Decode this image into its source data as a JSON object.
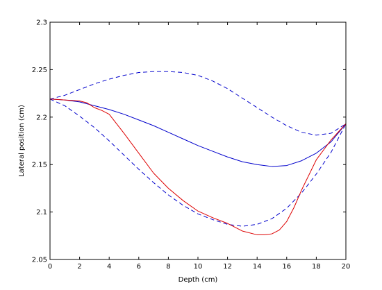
{
  "chart_data": {
    "type": "line",
    "title": "",
    "xlabel": "Depth (cm)",
    "ylabel": "Lateral position (cm)",
    "xlim": [
      0,
      20
    ],
    "ylim": [
      2.05,
      2.3
    ],
    "xticks": [
      0,
      2,
      4,
      6,
      8,
      10,
      12,
      14,
      16,
      18,
      20
    ],
    "yticks": [
      2.05,
      2.1,
      2.15,
      2.2,
      2.25,
      2.3
    ],
    "xtick_labels": [
      "0",
      "2",
      "4",
      "6",
      "8",
      "10",
      "12",
      "14",
      "16",
      "18",
      "20"
    ],
    "ytick_labels": [
      "2.05",
      "2.1",
      "2.15",
      "2.2",
      "2.25",
      "2.3"
    ],
    "grid": false,
    "legend": "none",
    "series": [
      {
        "color": "#0000cc",
        "style": "dashed",
        "x": [
          0,
          1,
          2,
          3,
          4,
          5,
          6,
          7,
          8,
          9,
          10,
          11,
          12,
          13,
          14,
          15,
          16,
          17,
          18,
          19,
          20
        ],
        "y": [
          2.219,
          2.223,
          2.229,
          2.235,
          2.24,
          2.244,
          2.247,
          2.248,
          2.248,
          2.247,
          2.244,
          2.238,
          2.23,
          2.22,
          2.21,
          2.2,
          2.191,
          2.184,
          2.181,
          2.183,
          2.193
        ]
      },
      {
        "color": "#0000cc",
        "style": "solid",
        "x": [
          0,
          1,
          2,
          3,
          4,
          5,
          6,
          7,
          8,
          9,
          10,
          11,
          12,
          13,
          14,
          15,
          16,
          17,
          18,
          19,
          20
        ],
        "y": [
          2.219,
          2.218,
          2.216,
          2.212,
          2.208,
          2.203,
          2.197,
          2.191,
          2.184,
          2.177,
          2.17,
          2.164,
          2.158,
          2.153,
          2.15,
          2.148,
          2.149,
          2.154,
          2.162,
          2.174,
          2.193
        ]
      },
      {
        "color": "#0000cc",
        "style": "dashed",
        "x": [
          0,
          1,
          2,
          3,
          4,
          5,
          6,
          7,
          8,
          9,
          10,
          11,
          12,
          13,
          14,
          15,
          16,
          17,
          18,
          19,
          20
        ],
        "y": [
          2.219,
          2.212,
          2.201,
          2.189,
          2.175,
          2.16,
          2.145,
          2.131,
          2.118,
          2.107,
          2.098,
          2.092,
          2.087,
          2.085,
          2.087,
          2.093,
          2.104,
          2.12,
          2.14,
          2.163,
          2.193
        ]
      },
      {
        "color": "#dd0000",
        "style": "solid",
        "x": [
          0,
          1,
          2,
          2.5,
          3,
          3.5,
          4,
          5,
          6,
          7,
          8,
          9,
          10,
          11,
          12,
          13,
          14,
          14.5,
          15,
          15.5,
          16,
          16.5,
          17,
          18,
          19,
          20
        ],
        "y": [
          2.219,
          2.218,
          2.217,
          2.215,
          2.21,
          2.207,
          2.203,
          2.183,
          2.162,
          2.141,
          2.125,
          2.112,
          2.101,
          2.094,
          2.088,
          2.08,
          2.076,
          2.076,
          2.077,
          2.081,
          2.09,
          2.105,
          2.123,
          2.155,
          2.176,
          2.193
        ]
      }
    ]
  }
}
